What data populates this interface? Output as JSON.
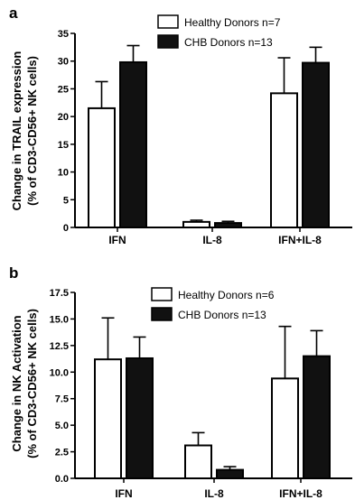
{
  "chart_data": [
    {
      "panel": "a",
      "type": "bar",
      "ylabel_line1": "Change in TRAIL expression",
      "ylabel_line2": "(% of CD3-CD56+ NK cells)",
      "ylim": [
        0,
        35
      ],
      "yticks": [
        "0",
        "5",
        "10",
        "15",
        "20",
        "25",
        "30",
        "35"
      ],
      "categories": [
        "IFN",
        "IL-8",
        "IFN+IL-8"
      ],
      "series": [
        {
          "name": "Healthy Donors n=7",
          "values": [
            21.5,
            1.0,
            24.2
          ],
          "errors": [
            4.8,
            0.3,
            6.4
          ],
          "fill": "#ffffff"
        },
        {
          "name": "CHB Donors n=13",
          "values": [
            29.8,
            0.8,
            29.7
          ],
          "errors": [
            3.0,
            0.3,
            2.8
          ],
          "fill": "#111111"
        }
      ],
      "legend_position": "top-right"
    },
    {
      "panel": "b",
      "type": "bar",
      "ylabel_line1": "Change in NK Activation",
      "ylabel_line2": "(% of CD3-CD56+ NK cells)",
      "ylim": [
        0,
        17.5
      ],
      "yticks": [
        "0.0",
        "2.5",
        "5.0",
        "7.5",
        "10.0",
        "12.5",
        "15.0",
        "17.5"
      ],
      "categories": [
        "IFN",
        "IL-8",
        "IFN+IL-8"
      ],
      "series": [
        {
          "name": "Healthy Donors n=6",
          "values": [
            11.2,
            3.1,
            9.4
          ],
          "errors": [
            3.9,
            1.2,
            4.9
          ],
          "fill": "#ffffff"
        },
        {
          "name": "CHB Donors n=13",
          "values": [
            11.3,
            0.8,
            11.5
          ],
          "errors": [
            2.0,
            0.3,
            2.4
          ],
          "fill": "#111111"
        }
      ],
      "legend_position": "top-right"
    }
  ]
}
